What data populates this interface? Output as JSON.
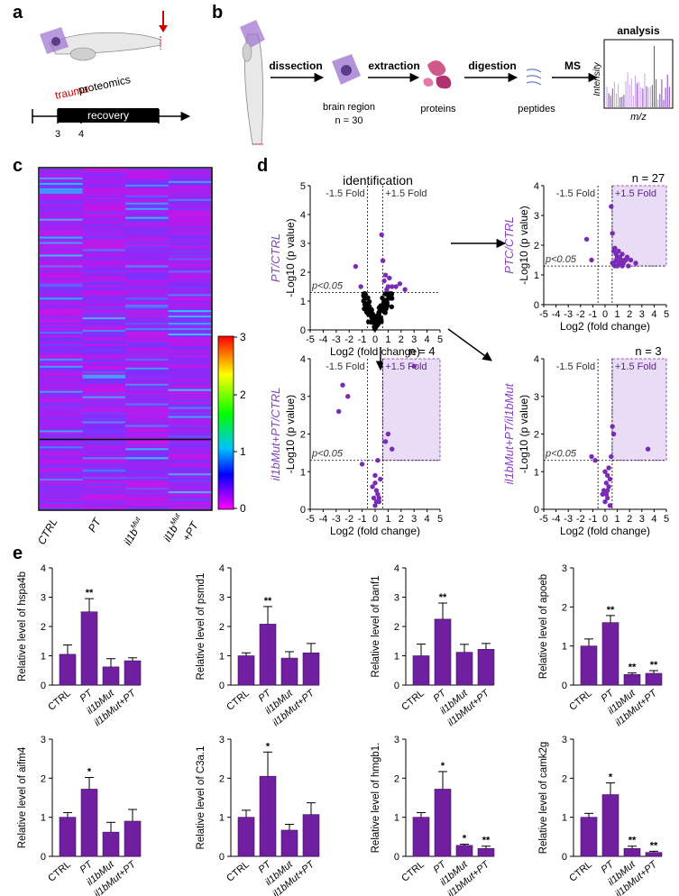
{
  "panels": {
    "a": "a",
    "b": "b",
    "c": "c",
    "d": "d",
    "e": "e"
  },
  "panel_a": {
    "trauma": "trauma",
    "proteomics": "proteomics",
    "recovery": "recovery",
    "ticks": [
      "3",
      "4"
    ]
  },
  "panel_b": {
    "steps": [
      "dissection",
      "extraction",
      "digestion",
      "MS"
    ],
    "brain_label": "brain region",
    "n_label": "n = 30",
    "proteins": "proteins",
    "peptides": "peptides",
    "analysis": "analysis",
    "intensity": "Intensity",
    "mz": "m/z"
  },
  "panel_c": {
    "columns": [
      "CTRL",
      "PT",
      "il1b",
      "il1b"
    ],
    "column_sups": [
      "",
      "",
      "Mut",
      "Mut"
    ],
    "column_suffix": [
      "",
      "",
      "",
      "+PT"
    ],
    "colorbar_ticks": [
      "3",
      "2",
      "1",
      "0"
    ],
    "colorbar_colors": [
      "#ff0000",
      "#ffff00",
      "#00ff00",
      "#00c0ff",
      "#0000ff",
      "#ff00ff"
    ]
  },
  "panel_d": {
    "identification": "identification",
    "fold_neg": "-1.5 Fold",
    "fold_pos": "+1.5 Fold",
    "pval": "p<0.05",
    "xlabel": "Log2 (fold change)",
    "ylabel": "-Log10 (p value)",
    "ylabel_p": "p",
    "ylabel_pre": "-Log10 (",
    "ylabel_post": " value)",
    "plots": [
      {
        "id": "pt-ctrl-all",
        "side_label": "PT/CTRL",
        "n": "",
        "xticks": [
          "-5",
          "-4",
          "-3",
          "-2",
          "-1",
          "0",
          "1",
          "2",
          "3",
          "4",
          "5"
        ],
        "yticks": [
          "0",
          "1",
          "2",
          "3",
          "4",
          "5"
        ],
        "ymax": 5
      },
      {
        "id": "pt-ctrl",
        "side_label": "PTC/CTRL",
        "n": "n = 27",
        "xticks": [
          "-5",
          "-4",
          "-3",
          "-2",
          "-1",
          "0",
          "1",
          "2",
          "3",
          "4",
          "5"
        ],
        "yticks": [
          "0",
          "1",
          "2",
          "3",
          "4"
        ],
        "ymax": 4
      },
      {
        "id": "il1b-pt-ctrl",
        "side_label": "il1bMut+PT/CTRL",
        "n": "n = 4",
        "xticks": [
          "-5",
          "-4",
          "-3",
          "-2",
          "-1",
          "0",
          "1",
          "2",
          "3",
          "4",
          "5"
        ],
        "yticks": [
          "0",
          "1",
          "2",
          "3",
          "4"
        ],
        "ymax": 4
      },
      {
        "id": "il1b-pt-il1b",
        "side_label": "il1bMut+PT/il1bMut",
        "n": "n = 3",
        "xticks": [
          "-5",
          "-4",
          "-3",
          "-2",
          "-1",
          "0",
          "1",
          "2",
          "3",
          "4",
          "5"
        ],
        "yticks": [
          "0",
          "1",
          "2",
          "3",
          "4"
        ],
        "ymax": 4
      }
    ]
  },
  "chart_data": [
    {
      "type": "bar",
      "title": "",
      "ylabel": "Relative level of hspa4b",
      "gene": "hspa4b",
      "categories": [
        "CTRL",
        "PT",
        "il1bMut",
        "il1bMut+PT"
      ],
      "values": [
        1.05,
        2.5,
        0.62,
        0.83
      ],
      "errors": [
        0.32,
        0.45,
        0.28,
        0.1
      ],
      "sig": [
        "",
        "**",
        "",
        ""
      ],
      "ylim": [
        0,
        4
      ],
      "yticks": [
        "0",
        "1",
        "2",
        "3",
        "4"
      ]
    },
    {
      "type": "bar",
      "title": "",
      "ylabel": "Relative level of psmd1",
      "gene": "psmd1",
      "categories": [
        "CTRL",
        "PT",
        "il1bMut",
        "il1bMut+PT"
      ],
      "values": [
        1.0,
        2.08,
        0.92,
        1.1
      ],
      "errors": [
        0.1,
        0.6,
        0.22,
        0.32
      ],
      "sig": [
        "",
        "**",
        "",
        ""
      ],
      "ylim": [
        0,
        4
      ],
      "yticks": [
        "0",
        "1",
        "2",
        "3",
        "4"
      ]
    },
    {
      "type": "bar",
      "title": "",
      "ylabel": "Relative level of banf1",
      "gene": "banf1",
      "categories": [
        "CTRL",
        "PT",
        "il1bMut",
        "il1bMut+PT"
      ],
      "values": [
        1.0,
        2.25,
        1.12,
        1.22
      ],
      "errors": [
        0.4,
        0.55,
        0.27,
        0.2
      ],
      "sig": [
        "",
        "**",
        "",
        ""
      ],
      "ylim": [
        0,
        4
      ],
      "yticks": [
        "0",
        "1",
        "2",
        "3",
        "4"
      ]
    },
    {
      "type": "bar",
      "title": "",
      "ylabel": "Relative level of apoeb",
      "gene": "apoeb",
      "categories": [
        "CTRL",
        "PT",
        "il1bMut",
        "il1bMut+PT"
      ],
      "values": [
        1.0,
        1.6,
        0.27,
        0.3
      ],
      "errors": [
        0.18,
        0.18,
        0.04,
        0.07
      ],
      "sig": [
        "",
        "**",
        "**",
        "**"
      ],
      "ylim": [
        0,
        3
      ],
      "yticks": [
        "0",
        "1",
        "2",
        "3"
      ]
    },
    {
      "type": "bar",
      "title": "",
      "ylabel": "Relative level of aifm4",
      "gene": "aifm4",
      "categories": [
        "CTRL",
        "PT",
        "il1bMut",
        "il1bMut+PT"
      ],
      "values": [
        1.0,
        1.72,
        0.62,
        0.9
      ],
      "errors": [
        0.12,
        0.3,
        0.25,
        0.3
      ],
      "sig": [
        "",
        "*",
        "",
        ""
      ],
      "ylim": [
        0,
        3
      ],
      "yticks": [
        "0",
        "1",
        "2",
        "3"
      ]
    },
    {
      "type": "bar",
      "title": "",
      "ylabel": "Relative level of C3a.1",
      "gene": "C3a.1",
      "categories": [
        "CTRL",
        "PT",
        "il1bMut",
        "il1bMut+PT"
      ],
      "values": [
        1.0,
        2.05,
        0.67,
        1.07
      ],
      "errors": [
        0.18,
        0.62,
        0.15,
        0.3
      ],
      "sig": [
        "",
        "*",
        "",
        ""
      ],
      "ylim": [
        0,
        3
      ],
      "yticks": [
        "0",
        "1",
        "2",
        "3"
      ]
    },
    {
      "type": "bar",
      "title": "",
      "ylabel": "Relative level of hmgb1.",
      "gene": "hmgb1.",
      "categories": [
        "CTRL",
        "PT",
        "il1bMut",
        "il1bMut+PT"
      ],
      "values": [
        1.0,
        1.72,
        0.28,
        0.2
      ],
      "errors": [
        0.12,
        0.45,
        0.03,
        0.06
      ],
      "sig": [
        "",
        "*",
        "*",
        "**"
      ],
      "ylim": [
        0,
        3
      ],
      "yticks": [
        "0",
        "1",
        "2",
        "3"
      ]
    },
    {
      "type": "bar",
      "title": "",
      "ylabel": "Relative level of camk2g",
      "gene": "camk2g",
      "categories": [
        "CTRL",
        "PT",
        "il1bMut",
        "il1bMut+PT"
      ],
      "values": [
        1.0,
        1.58,
        0.2,
        0.1
      ],
      "errors": [
        0.1,
        0.3,
        0.06,
        0.03
      ],
      "sig": [
        "",
        "*",
        "**",
        "**"
      ],
      "ylim": [
        0,
        3
      ],
      "yticks": [
        "0",
        "1",
        "2",
        "3"
      ]
    }
  ]
}
